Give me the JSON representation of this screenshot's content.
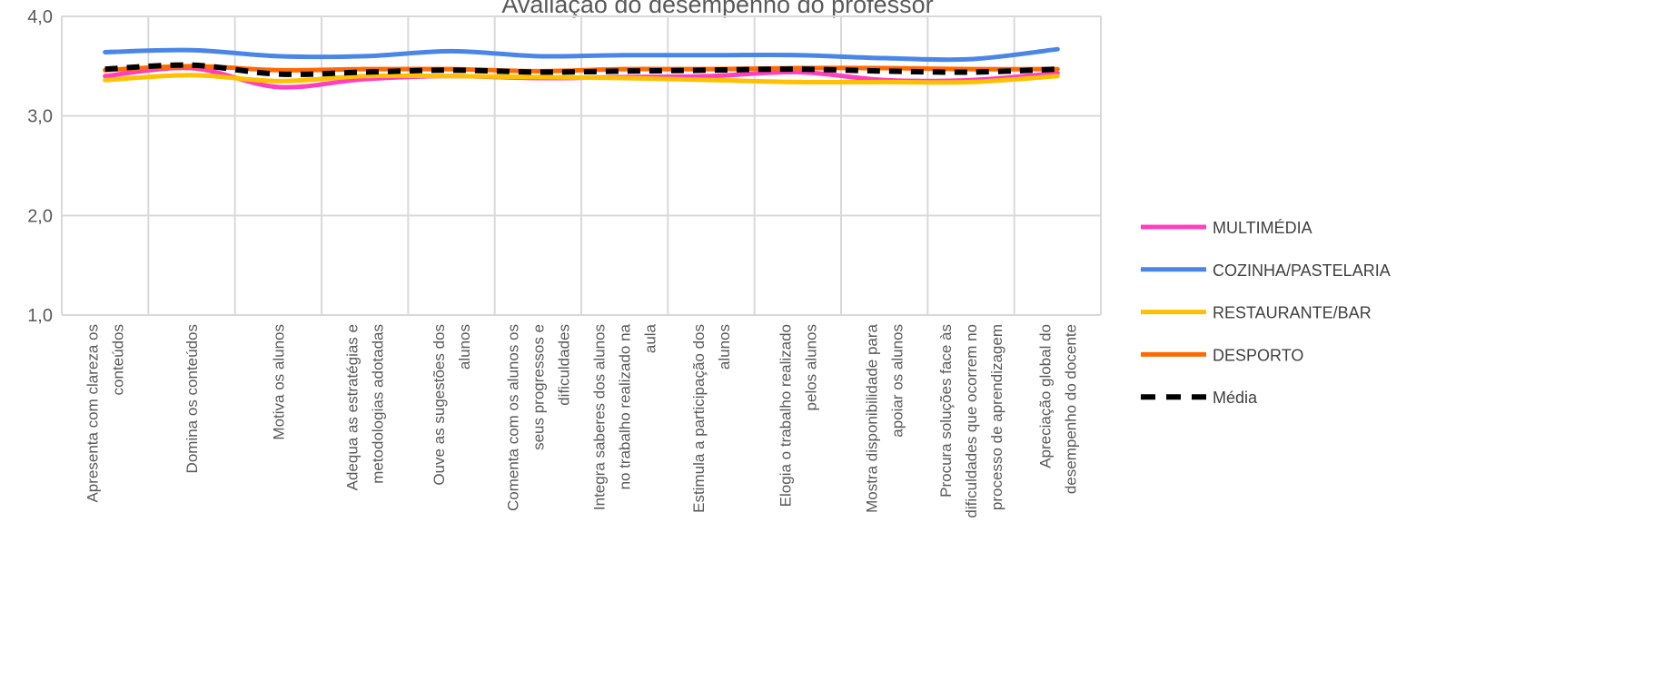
{
  "chart_data": {
    "type": "line",
    "title": "Avaliação do desempenho do professor",
    "categories": [
      "Apresenta com clareza os conteúdos",
      "Domina os conteúdos",
      "Motiva os alunos",
      "Adequa as estratégias e metodologias adotadas",
      "Ouve as sugestões dos alunos",
      "Comenta com os alunos os seus progressos e dificuldades",
      "Integra saberes dos alunos no trabalho realizado na aula",
      "Estimula a participação dos alunos",
      "Elogia o trabalho realizado pelos alunos",
      "Mostra disponibilidade para apoiar os alunos",
      "Procura soluções face às dificuldades que ocorrem no processo de aprendizagem",
      "Apreciação global do desempenho do docente"
    ],
    "series": [
      {
        "name": "MULTIMÉDIA",
        "color": "#ff3fbf",
        "dash": false,
        "values": [
          3.4,
          3.48,
          3.29,
          3.37,
          3.4,
          3.38,
          3.39,
          3.4,
          3.44,
          3.36,
          3.36,
          3.43
        ]
      },
      {
        "name": "COZINHA/PASTELARIA",
        "color": "#4a86e8",
        "dash": false,
        "values": [
          3.64,
          3.66,
          3.6,
          3.6,
          3.65,
          3.6,
          3.61,
          3.61,
          3.61,
          3.58,
          3.57,
          3.67
        ]
      },
      {
        "name": "RESTAURANTE/BAR",
        "color": "#ffc000",
        "dash": false,
        "values": [
          3.36,
          3.41,
          3.35,
          3.4,
          3.4,
          3.39,
          3.38,
          3.36,
          3.34,
          3.34,
          3.34,
          3.4
        ]
      },
      {
        "name": "DESPORTO",
        "color": "#ff6a00",
        "dash": false,
        "values": [
          3.46,
          3.5,
          3.46,
          3.47,
          3.47,
          3.45,
          3.47,
          3.47,
          3.48,
          3.48,
          3.47,
          3.47
        ]
      },
      {
        "name": "Média",
        "color": "#000000",
        "dash": true,
        "values": [
          3.47,
          3.51,
          3.42,
          3.44,
          3.46,
          3.44,
          3.45,
          3.46,
          3.47,
          3.45,
          3.44,
          3.47
        ]
      }
    ],
    "ylim": [
      1,
      4
    ],
    "yticks": [
      {
        "value": 1,
        "label": "1,0"
      },
      {
        "value": 2,
        "label": "2,0"
      },
      {
        "value": 3,
        "label": "3,0"
      },
      {
        "value": 4,
        "label": "4,0"
      }
    ],
    "grid": true,
    "legend": "right"
  }
}
